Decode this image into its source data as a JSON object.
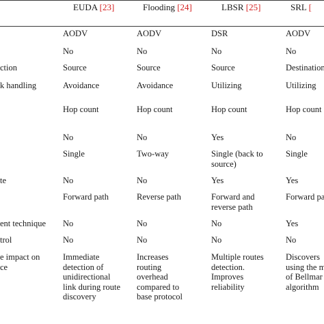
{
  "headers": [
    {
      "name": "EUDA",
      "ref": "[23]"
    },
    {
      "name": "Flooding",
      "ref": "[24]"
    },
    {
      "name": "LBSR",
      "ref": "[25]"
    },
    {
      "name": "SRL",
      "ref": "["
    }
  ],
  "rows": [
    {
      "label": "",
      "cells": [
        "AODV",
        "AODV",
        "DSR",
        "AODV"
      ]
    },
    {
      "label": "",
      "cells": [
        "No",
        "No",
        "No",
        "No"
      ]
    },
    {
      "label": "ction",
      "cells": [
        "Source",
        "Source",
        "Source",
        "Destination"
      ]
    },
    {
      "label": "k handling",
      "cells": [
        "Avoidance",
        "Avoidance",
        "Utilizing",
        "Utilizing"
      ]
    },
    {
      "label": "",
      "cells": [
        "Hop count",
        "Hop count",
        "Hop count",
        "Hop count"
      ]
    },
    {
      "label": "",
      "cells": [
        "No",
        "No",
        "Yes",
        "No"
      ]
    },
    {
      "label": "",
      "cells": [
        "Single",
        "Two-way",
        "Single (back to\nsource)",
        "Single"
      ]
    },
    {
      "label": "te",
      "cells": [
        "No",
        "No",
        "Yes",
        "Yes"
      ]
    },
    {
      "label": "",
      "cells": [
        "Forward path",
        "Reverse path",
        "Forward and\nreverse path",
        "Forward pa"
      ]
    },
    {
      "label": "ent technique",
      "cells": [
        "No",
        "No",
        "No",
        "Yes"
      ]
    },
    {
      "label": "trol",
      "cells": [
        "No",
        "No",
        "No",
        "No"
      ]
    },
    {
      "label": "e impact on\nce",
      "cells": [
        "Immediate\ndetection of\nunidirectional\nlink during route\ndiscovery",
        "Increases\nrouting\noverhead\ncompared to\nbase protocol",
        "Multiple routes\ndetection.\nImproves\nreliability",
        "Discovers\nusing the m\nof Bellmar\nalgorithm"
      ]
    }
  ]
}
